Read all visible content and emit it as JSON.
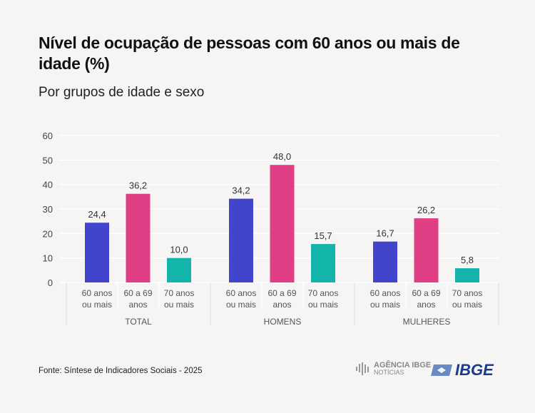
{
  "title": "Nível de ocupação de pessoas com 60 anos ou mais de idade (%)",
  "subtitle": "Por grupos de idade e sexo",
  "source": "Fonte: Síntese de Indicadores Sociais - 2025",
  "logos": {
    "agencia_line1": "AGÊNCIA IBGE",
    "agencia_line2": "NOTÍCIAS",
    "ibge": "IBGE"
  },
  "colors": {
    "60 anos ou mais": "#4244cc",
    "60 a 69 anos": "#e03f85",
    "70 anos ou mais": "#13b5ab"
  },
  "chart_data": {
    "type": "bar",
    "title": "Nível de ocupação de pessoas com 60 anos ou mais de idade (%)",
    "subtitle": "Por grupos de idade e sexo",
    "groups": [
      "TOTAL",
      "HOMENS",
      "MULHERES"
    ],
    "categories": [
      [
        "60 anos",
        "ou mais"
      ],
      [
        "60 a 69",
        "anos"
      ],
      [
        "70 anos",
        "ou mais"
      ]
    ],
    "category_keys": [
      "60 anos ou mais",
      "60 a 69 anos",
      "70 anos ou mais"
    ],
    "values": [
      [
        24.4,
        36.2,
        10.0
      ],
      [
        34.2,
        48.0,
        15.7
      ],
      [
        16.7,
        26.2,
        5.8
      ]
    ],
    "data_labels": [
      [
        "24,4",
        "36,2",
        "10,0"
      ],
      [
        "34,2",
        "48,0",
        "15,7"
      ],
      [
        "16,7",
        "26,2",
        "5,8"
      ]
    ],
    "ylim": [
      0,
      60
    ],
    "yticks": [
      "0",
      "10",
      "20",
      "30",
      "40",
      "50",
      "60"
    ],
    "grid": true,
    "legend": "none"
  }
}
